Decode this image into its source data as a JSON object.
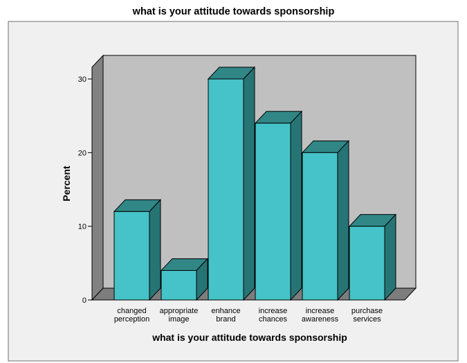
{
  "chart_data": {
    "type": "bar",
    "title": "what is your attitude towards sponsorship",
    "xlabel": "what is your attitude towards sponsorship",
    "ylabel": "Percent",
    "categories": [
      [
        "changed",
        "perception"
      ],
      [
        "appropriate",
        "image"
      ],
      [
        "enhance",
        "brand"
      ],
      [
        "increase",
        "chances"
      ],
      [
        "increase",
        "awareness"
      ],
      [
        "purchase",
        "services"
      ]
    ],
    "values": [
      12,
      4,
      30,
      24,
      20,
      10
    ],
    "ylim": [
      0,
      32
    ],
    "yticks": [
      0,
      10,
      20,
      30
    ],
    "grid": false,
    "colors": {
      "bar_front": "#45c3c8",
      "bar_side": "#277475",
      "bar_top": "#318686",
      "back_wall": "#c0c0c0",
      "side_wall": "#828282",
      "floor": "#7d7d7d",
      "outer_frame": "#f0f0f0"
    }
  }
}
